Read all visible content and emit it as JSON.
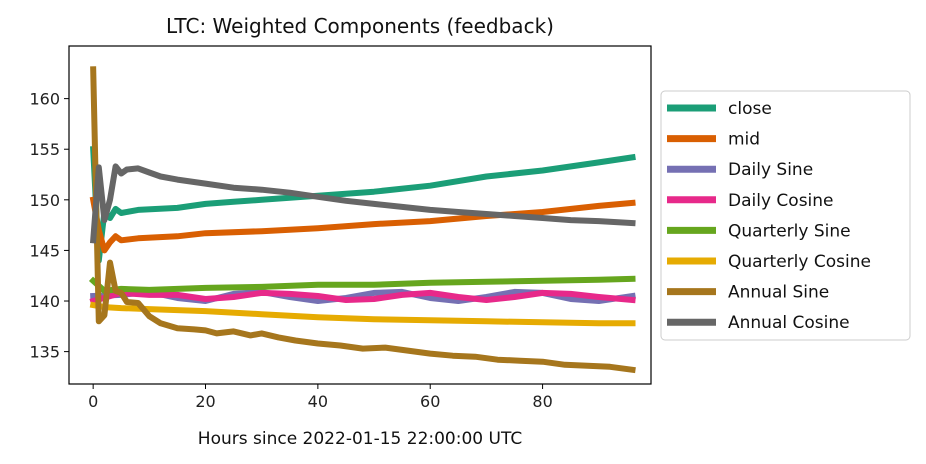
{
  "chart_data": {
    "type": "line",
    "title": "LTC: Weighted Components (feedback)",
    "xlabel": "Hours since 2022-01-15 22:00:00 UTC",
    "ylabel": "",
    "xlim": [
      -4.3,
      99.3
    ],
    "ylim": [
      131.8,
      165.2
    ],
    "xticks": [
      0,
      20,
      40,
      60,
      80
    ],
    "yticks": [
      135,
      140,
      145,
      150,
      155,
      160
    ],
    "grid": false,
    "legend_position": "outside-right",
    "series": [
      {
        "name": "close",
        "color": "#1b9e77",
        "points": [
          [
            0,
            155.0
          ],
          [
            1,
            144.0
          ],
          [
            2,
            148.8
          ],
          [
            3,
            148.2
          ],
          [
            4,
            149.1
          ],
          [
            5,
            148.7
          ],
          [
            8,
            149.0
          ],
          [
            15,
            149.2
          ],
          [
            20,
            149.6
          ],
          [
            25,
            149.8
          ],
          [
            30,
            150.0
          ],
          [
            40,
            150.4
          ],
          [
            50,
            150.8
          ],
          [
            60,
            151.4
          ],
          [
            70,
            152.3
          ],
          [
            80,
            152.9
          ],
          [
            90,
            153.7
          ],
          [
            96,
            154.2
          ]
        ]
      },
      {
        "name": "mid",
        "color": "#d95f02",
        "points": [
          [
            0,
            150.0
          ],
          [
            1,
            147.0
          ],
          [
            2,
            145.0
          ],
          [
            3,
            145.8
          ],
          [
            4,
            146.4
          ],
          [
            5,
            146.0
          ],
          [
            8,
            146.2
          ],
          [
            15,
            146.4
          ],
          [
            20,
            146.7
          ],
          [
            30,
            146.9
          ],
          [
            40,
            147.2
          ],
          [
            50,
            147.6
          ],
          [
            60,
            147.9
          ],
          [
            70,
            148.4
          ],
          [
            80,
            148.8
          ],
          [
            90,
            149.4
          ],
          [
            96,
            149.7
          ]
        ]
      },
      {
        "name": "Daily Sine",
        "color": "#7570b3",
        "points": [
          [
            0,
            140.5
          ],
          [
            5,
            140.6
          ],
          [
            10,
            140.9
          ],
          [
            15,
            140.3
          ],
          [
            20,
            140.0
          ],
          [
            25,
            140.7
          ],
          [
            30,
            140.9
          ],
          [
            35,
            140.4
          ],
          [
            40,
            140.0
          ],
          [
            45,
            140.3
          ],
          [
            50,
            140.8
          ],
          [
            55,
            140.9
          ],
          [
            60,
            140.3
          ],
          [
            65,
            140.0
          ],
          [
            70,
            140.4
          ],
          [
            75,
            140.9
          ],
          [
            80,
            140.8
          ],
          [
            85,
            140.2
          ],
          [
            90,
            140.0
          ],
          [
            96,
            140.5
          ]
        ]
      },
      {
        "name": "Daily Cosine",
        "color": "#e7298a",
        "points": [
          [
            0,
            140.0
          ],
          [
            5,
            140.8
          ],
          [
            10,
            140.6
          ],
          [
            15,
            140.6
          ],
          [
            20,
            140.2
          ],
          [
            25,
            140.4
          ],
          [
            30,
            140.8
          ],
          [
            35,
            140.7
          ],
          [
            40,
            140.5
          ],
          [
            45,
            140.1
          ],
          [
            50,
            140.2
          ],
          [
            55,
            140.6
          ],
          [
            60,
            140.8
          ],
          [
            65,
            140.4
          ],
          [
            70,
            140.1
          ],
          [
            75,
            140.4
          ],
          [
            80,
            140.8
          ],
          [
            85,
            140.7
          ],
          [
            90,
            140.4
          ],
          [
            96,
            140.1
          ]
        ]
      },
      {
        "name": "Quarterly Sine",
        "color": "#66a61e",
        "points": [
          [
            0,
            142.0
          ],
          [
            2,
            141.0
          ],
          [
            5,
            141.2
          ],
          [
            10,
            141.1
          ],
          [
            20,
            141.3
          ],
          [
            30,
            141.4
          ],
          [
            40,
            141.6
          ],
          [
            50,
            141.6
          ],
          [
            60,
            141.8
          ],
          [
            70,
            141.9
          ],
          [
            80,
            142.0
          ],
          [
            90,
            142.1
          ],
          [
            96,
            142.2
          ]
        ]
      },
      {
        "name": "Quarterly Cosine",
        "color": "#e6ab02",
        "points": [
          [
            0,
            139.6
          ],
          [
            2,
            139.4
          ],
          [
            5,
            139.3
          ],
          [
            10,
            139.2
          ],
          [
            20,
            139.0
          ],
          [
            30,
            138.7
          ],
          [
            40,
            138.4
          ],
          [
            50,
            138.2
          ],
          [
            60,
            138.1
          ],
          [
            70,
            138.0
          ],
          [
            80,
            137.9
          ],
          [
            90,
            137.8
          ],
          [
            96,
            137.8
          ]
        ]
      },
      {
        "name": "Annual Sine",
        "color": "#a6761d",
        "points": [
          [
            0,
            162.9
          ],
          [
            1,
            138.0
          ],
          [
            2,
            138.6
          ],
          [
            3,
            143.8
          ],
          [
            4,
            141.0
          ],
          [
            5,
            140.8
          ],
          [
            6,
            139.9
          ],
          [
            8,
            139.8
          ],
          [
            10,
            138.5
          ],
          [
            12,
            137.8
          ],
          [
            15,
            137.3
          ],
          [
            18,
            137.2
          ],
          [
            20,
            137.1
          ],
          [
            22,
            136.8
          ],
          [
            25,
            137.0
          ],
          [
            28,
            136.6
          ],
          [
            30,
            136.8
          ],
          [
            33,
            136.4
          ],
          [
            36,
            136.1
          ],
          [
            40,
            135.8
          ],
          [
            44,
            135.6
          ],
          [
            48,
            135.3
          ],
          [
            52,
            135.4
          ],
          [
            56,
            135.1
          ],
          [
            60,
            134.8
          ],
          [
            64,
            134.6
          ],
          [
            68,
            134.5
          ],
          [
            72,
            134.2
          ],
          [
            76,
            134.1
          ],
          [
            80,
            134.0
          ],
          [
            84,
            133.7
          ],
          [
            88,
            133.6
          ],
          [
            92,
            133.5
          ],
          [
            96,
            133.2
          ]
        ]
      },
      {
        "name": "Annual Cosine",
        "color": "#666666",
        "points": [
          [
            0,
            146.0
          ],
          [
            1,
            153.2
          ],
          [
            2,
            148.0
          ],
          [
            3,
            150.0
          ],
          [
            4,
            153.3
          ],
          [
            5,
            152.6
          ],
          [
            6,
            153.0
          ],
          [
            8,
            153.1
          ],
          [
            10,
            152.7
          ],
          [
            12,
            152.3
          ],
          [
            15,
            152.0
          ],
          [
            20,
            151.6
          ],
          [
            25,
            151.2
          ],
          [
            30,
            151.0
          ],
          [
            35,
            150.7
          ],
          [
            40,
            150.3
          ],
          [
            45,
            149.9
          ],
          [
            50,
            149.6
          ],
          [
            55,
            149.3
          ],
          [
            60,
            149.0
          ],
          [
            65,
            148.8
          ],
          [
            70,
            148.6
          ],
          [
            75,
            148.4
          ],
          [
            80,
            148.2
          ],
          [
            85,
            148.0
          ],
          [
            90,
            147.9
          ],
          [
            96,
            147.7
          ]
        ]
      }
    ]
  }
}
